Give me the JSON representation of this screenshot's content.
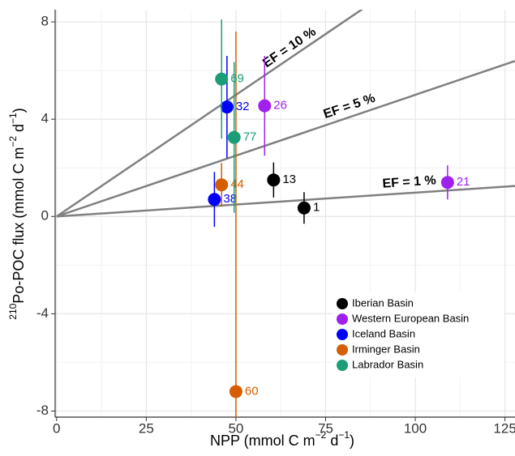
{
  "chart_data": {
    "type": "scatter",
    "xlabel": [
      {
        "text": "NPP (mmol C m"
      },
      {
        "text": "−2",
        "sup": true
      },
      {
        "text": " d"
      },
      {
        "text": "−1",
        "sup": true
      },
      {
        "text": ")"
      }
    ],
    "ylabel": [
      {
        "text": "210",
        "sup": true
      },
      {
        "text": "Po-POC flux (mmol C m"
      },
      {
        "text": "−2",
        "sup": true
      },
      {
        "text": " d"
      },
      {
        "text": "−1",
        "sup": true
      },
      {
        "text": ")"
      }
    ],
    "xlim": [
      -0.4,
      127.8
    ],
    "ylim": [
      -8.25,
      8.5
    ],
    "xticks": [
      0,
      25,
      50,
      75,
      100,
      125
    ],
    "yticks": [
      -8,
      -4,
      0,
      4,
      8
    ],
    "grid": true,
    "legend": "bottom-right",
    "reference_lines": [
      {
        "label": "EF = 10 %",
        "slope": 0.1
      },
      {
        "label": "EF = 5 %",
        "slope": 0.05
      },
      {
        "label": "EF = 1 %",
        "slope": 0.0098
      }
    ],
    "series": [
      {
        "name": "Iberian Basin",
        "color": "#000000",
        "x": [
          69,
          60.5
        ],
        "values": [
          0.35,
          1.5
        ],
        "errors": [
          0.65,
          0.72
        ],
        "labels": [
          "1",
          "13"
        ]
      },
      {
        "name": "Western European Basin",
        "color": "#a020f0",
        "x": [
          58,
          109
        ],
        "values": [
          4.55,
          1.4
        ],
        "errors": [
          2.05,
          0.7
        ],
        "labels": [
          "26",
          "21"
        ]
      },
      {
        "name": "Iceland Basin",
        "color": "#0000ff",
        "x": [
          47.5,
          44
        ],
        "values": [
          4.5,
          0.7
        ],
        "errors": [
          2.1,
          1.13
        ],
        "labels": [
          "32",
          "38"
        ]
      },
      {
        "name": "Irminger Basin",
        "color": "#d55e00",
        "x": [
          46,
          50
        ],
        "values": [
          1.3,
          -7.2
        ],
        "errors": [
          0.9,
          14.8
        ],
        "labels": [
          "44",
          "60"
        ]
      },
      {
        "name": "Labrador Basin",
        "color": "#1b9e77",
        "x": [
          46,
          49.5
        ],
        "values": [
          5.65,
          3.25
        ],
        "errors": [
          2.45,
          3.1
        ],
        "labels": [
          "69",
          "77"
        ]
      }
    ]
  }
}
